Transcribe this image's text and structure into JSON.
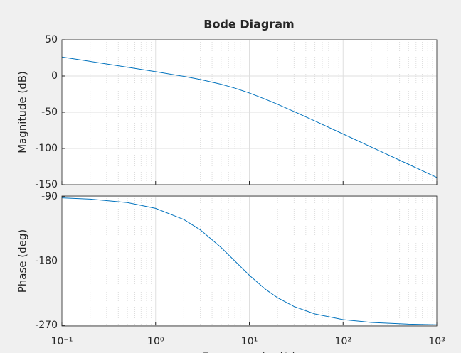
{
  "chart_data": [
    {
      "type": "line",
      "title": "Bode Diagram",
      "ylabel": "Magnitude (dB)",
      "xscale": "log",
      "grid": true,
      "minor_grid": true,
      "x": [
        0.1,
        0.2,
        0.5,
        1,
        2,
        3,
        5,
        7,
        10,
        15,
        20,
        30,
        50,
        100,
        200,
        500,
        1000
      ],
      "series": [
        {
          "color": "#0072bd",
          "values": [
            26.19,
            20.17,
            12.17,
            6.02,
            -0.51,
            -4.81,
            -11.36,
            -16.73,
            -23.46,
            -32.28,
            -39.07,
            -49.09,
            -62.11,
            -80.04,
            -98.07,
            -121.94,
            -140.0
          ]
        }
      ],
      "xlim": [
        0.1,
        1000
      ],
      "xticks": [
        0.1,
        1,
        10,
        100,
        1000
      ],
      "ylim": [
        -150,
        50
      ],
      "yticks": [
        -150,
        -100,
        -50,
        0,
        50
      ]
    },
    {
      "type": "line",
      "ylabel": "Phase (deg)",
      "xlabel": "Frequency (rad/s)",
      "xscale": "log",
      "grid": true,
      "minor_grid": true,
      "x": [
        0.1,
        0.2,
        0.5,
        1,
        2,
        3,
        5,
        7,
        10,
        15,
        20,
        30,
        50,
        100,
        200,
        500,
        1000
      ],
      "series": [
        {
          "color": "#0072bd",
          "values": [
            -91.6,
            -93.3,
            -98.2,
            -106.3,
            -121.9,
            -136.4,
            -161.1,
            -180.0,
            -200.0,
            -220.0,
            -231.4,
            -243.7,
            -254.1,
            -262.0,
            -266.0,
            -268.4,
            -269.2
          ]
        }
      ],
      "xlim": [
        0.1,
        1000
      ],
      "xticks": [
        {
          "value": 0.1,
          "label": "10⁻¹"
        },
        {
          "value": 1,
          "label": "10⁰"
        },
        {
          "value": 10,
          "label": "10¹"
        },
        {
          "value": 100,
          "label": "10²"
        },
        {
          "value": 1000,
          "label": "10³"
        }
      ],
      "ylim": [
        -271,
        -89
      ],
      "yticks": [
        -270,
        -180,
        -90
      ]
    }
  ]
}
